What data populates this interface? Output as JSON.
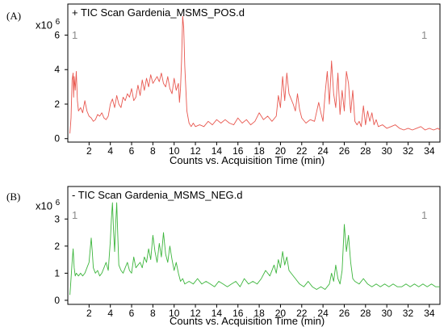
{
  "chart_data": [
    {
      "type": "line",
      "panel_label": "(A)",
      "exponent_base": "x10",
      "exponent_power": "6",
      "title": "+ TIC Scan Gardenia_MSMS_POS.d",
      "corner_left": "1",
      "corner_right": "1",
      "xlabel": "Counts vs. Acquisition Time (min)",
      "xlim": [
        0,
        35
      ],
      "ylim": [
        -0.2,
        7.8
      ],
      "x_ticks": [
        2,
        4,
        6,
        8,
        10,
        12,
        14,
        16,
        18,
        20,
        22,
        24,
        26,
        28,
        30,
        32,
        34
      ],
      "y_ticks": [
        0,
        2,
        4,
        6
      ],
      "color": "#e8574f",
      "series": [
        {
          "x": [
            0.2,
            0.3,
            0.4,
            0.5,
            0.55,
            0.6,
            0.7,
            0.8,
            0.9,
            1.0,
            1.2,
            1.4,
            1.6,
            1.8,
            2.0,
            2.2,
            2.4,
            2.6,
            2.8,
            3.0,
            3.2,
            3.4,
            3.6,
            3.8,
            4.0,
            4.2,
            4.4,
            4.6,
            4.8,
            5.0,
            5.2,
            5.4,
            5.6,
            5.8,
            6.0,
            6.2,
            6.4,
            6.6,
            6.8,
            7.0,
            7.2,
            7.4,
            7.6,
            7.8,
            8.0,
            8.2,
            8.4,
            8.6,
            8.8,
            9.0,
            9.2,
            9.4,
            9.6,
            9.8,
            10.0,
            10.2,
            10.4,
            10.5,
            10.6,
            10.7,
            10.8,
            10.9,
            11.0,
            11.2,
            11.4,
            11.6,
            11.8,
            12.0,
            12.4,
            12.8,
            13.2,
            13.6,
            14.0,
            14.4,
            14.8,
            15.2,
            15.6,
            16.0,
            16.4,
            16.8,
            17.2,
            17.6,
            18.0,
            18.4,
            18.8,
            19.2,
            19.6,
            19.8,
            20.0,
            20.2,
            20.4,
            20.6,
            20.8,
            21.0,
            21.2,
            21.4,
            21.6,
            21.8,
            22.0,
            22.4,
            22.8,
            23.2,
            23.6,
            23.8,
            24.0,
            24.2,
            24.4,
            24.6,
            24.8,
            25.0,
            25.2,
            25.4,
            25.6,
            25.8,
            26.0,
            26.2,
            26.4,
            26.6,
            26.8,
            27.0,
            27.2,
            27.4,
            27.6,
            27.8,
            28.0,
            28.2,
            28.4,
            28.6,
            28.8,
            29.0,
            29.2,
            29.6,
            30.0,
            30.4,
            30.8,
            31.2,
            31.6,
            32.0,
            32.4,
            32.8,
            33.2,
            33.6,
            34.0,
            34.4,
            34.8,
            35.0
          ],
          "y": [
            0.3,
            1.2,
            3.4,
            3.8,
            2.4,
            3.6,
            2.8,
            3.9,
            2.2,
            1.6,
            1.8,
            1.5,
            2.2,
            1.6,
            1.3,
            1.2,
            1.0,
            1.1,
            1.4,
            1.3,
            1.5,
            1.2,
            1.1,
            1.3,
            2.0,
            2.3,
            1.8,
            2.5,
            2.0,
            1.8,
            2.4,
            2.2,
            2.6,
            2.4,
            2.9,
            2.2,
            2.4,
            3.1,
            2.5,
            3.4,
            2.8,
            3.5,
            3.0,
            3.7,
            3.2,
            3.4,
            3.6,
            3.3,
            3.8,
            3.2,
            3.0,
            3.6,
            2.9,
            2.6,
            3.5,
            2.8,
            3.2,
            2.1,
            2.9,
            4.5,
            7.1,
            6.4,
            4.2,
            1.6,
            0.9,
            0.7,
            0.9,
            0.7,
            0.8,
            0.7,
            1.0,
            0.8,
            1.1,
            0.9,
            1.1,
            0.9,
            0.8,
            1.2,
            0.9,
            1.1,
            0.8,
            1.0,
            1.5,
            1.1,
            1.3,
            1.0,
            1.3,
            2.5,
            1.8,
            3.6,
            2.2,
            3.8,
            2.6,
            2.3,
            2.0,
            1.6,
            2.6,
            1.7,
            1.2,
            0.9,
            1.1,
            1.0,
            2.1,
            1.5,
            1.0,
            2.6,
            3.9,
            2.0,
            4.5,
            2.6,
            1.8,
            3.8,
            1.4,
            2.8,
            1.6,
            3.9,
            3.2,
            1.5,
            2.8,
            1.0,
            0.8,
            1.0,
            0.7,
            1.9,
            0.8,
            1.6,
            1.0,
            1.5,
            0.8,
            1.1,
            0.7,
            0.8,
            0.6,
            0.7,
            0.8,
            0.6,
            0.5,
            0.6,
            0.5,
            0.6,
            0.7,
            0.5,
            0.6,
            0.5,
            0.6,
            0.5
          ]
        }
      ]
    },
    {
      "type": "line",
      "panel_label": "(B)",
      "exponent_base": "x10",
      "exponent_power": "6",
      "title": "- TIC Scan Gardenia_MSMS_NEG.d",
      "corner_left": "1",
      "corner_right": "1",
      "xlabel": "Counts vs. Acquisition Time (min)",
      "xlim": [
        0,
        35
      ],
      "ylim": [
        -0.15,
        4.2
      ],
      "x_ticks": [
        2,
        4,
        6,
        8,
        10,
        12,
        14,
        16,
        18,
        20,
        22,
        24,
        26,
        28,
        30,
        32,
        34
      ],
      "y_ticks": [
        0,
        1,
        2,
        3
      ],
      "color": "#3cb53c",
      "series": [
        {
          "x": [
            0.2,
            0.3,
            0.4,
            0.5,
            0.6,
            0.7,
            0.8,
            1.0,
            1.2,
            1.4,
            1.6,
            1.8,
            2.0,
            2.2,
            2.3,
            2.4,
            2.6,
            2.8,
            3.0,
            3.2,
            3.4,
            3.6,
            3.8,
            4.0,
            4.1,
            4.2,
            4.3,
            4.4,
            4.5,
            4.6,
            4.7,
            4.8,
            5.0,
            5.2,
            5.4,
            5.6,
            5.8,
            6.0,
            6.2,
            6.4,
            6.6,
            6.8,
            7.0,
            7.2,
            7.4,
            7.6,
            7.8,
            8.0,
            8.2,
            8.4,
            8.6,
            8.8,
            9.0,
            9.2,
            9.4,
            9.6,
            9.8,
            10.0,
            10.2,
            10.4,
            10.6,
            10.8,
            11.0,
            11.4,
            11.8,
            12.2,
            12.6,
            13.0,
            13.4,
            13.8,
            14.2,
            14.6,
            15.0,
            15.4,
            15.8,
            16.2,
            16.6,
            17.0,
            17.4,
            17.8,
            18.2,
            18.6,
            19.0,
            19.4,
            19.6,
            19.8,
            20.0,
            20.2,
            20.4,
            20.6,
            20.8,
            21.0,
            21.4,
            21.8,
            22.2,
            22.6,
            23.0,
            23.4,
            23.8,
            24.2,
            24.6,
            24.8,
            25.0,
            25.2,
            25.4,
            25.6,
            25.8,
            26.0,
            26.2,
            26.4,
            26.6,
            26.8,
            27.0,
            27.4,
            27.8,
            28.2,
            28.6,
            29.0,
            29.4,
            29.8,
            30.2,
            30.6,
            31.0,
            31.4,
            31.8,
            32.2,
            32.6,
            33.0,
            33.4,
            33.8,
            34.2,
            34.6,
            35.0
          ],
          "y": [
            0.2,
            0.8,
            1.4,
            1.9,
            1.2,
            0.9,
            1.0,
            0.9,
            1.0,
            0.9,
            1.0,
            1.2,
            1.4,
            2.3,
            1.8,
            1.2,
            1.0,
            1.1,
            0.9,
            1.0,
            1.2,
            1.4,
            1.1,
            2.2,
            3.0,
            3.6,
            2.6,
            1.8,
            2.8,
            3.6,
            2.4,
            1.3,
            1.1,
            1.0,
            1.2,
            1.4,
            1.1,
            1.0,
            1.6,
            1.2,
            1.3,
            1.4,
            1.2,
            1.6,
            1.4,
            1.9,
            1.5,
            2.4,
            1.8,
            1.4,
            2.1,
            1.6,
            2.5,
            1.7,
            1.4,
            2.0,
            1.5,
            1.1,
            1.4,
            1.0,
            0.7,
            0.8,
            0.6,
            0.7,
            0.6,
            0.8,
            0.6,
            0.7,
            0.6,
            0.5,
            0.7,
            0.6,
            0.5,
            0.6,
            0.7,
            0.5,
            0.8,
            0.6,
            0.7,
            0.6,
            0.8,
            1.1,
            0.9,
            1.3,
            1.0,
            1.5,
            1.2,
            1.8,
            1.3,
            1.6,
            1.1,
            1.0,
            0.8,
            0.6,
            0.5,
            0.7,
            0.5,
            0.4,
            0.5,
            0.4,
            0.6,
            1.0,
            0.7,
            1.3,
            0.8,
            0.6,
            1.1,
            2.8,
            1.8,
            2.4,
            1.4,
            0.8,
            0.7,
            0.6,
            0.8,
            0.6,
            0.5,
            0.6,
            0.5,
            0.6,
            0.5,
            0.6,
            0.5,
            0.5,
            0.6,
            0.5,
            0.6,
            0.5,
            0.6,
            0.5,
            0.6,
            0.5,
            0.5
          ]
        }
      ]
    }
  ]
}
